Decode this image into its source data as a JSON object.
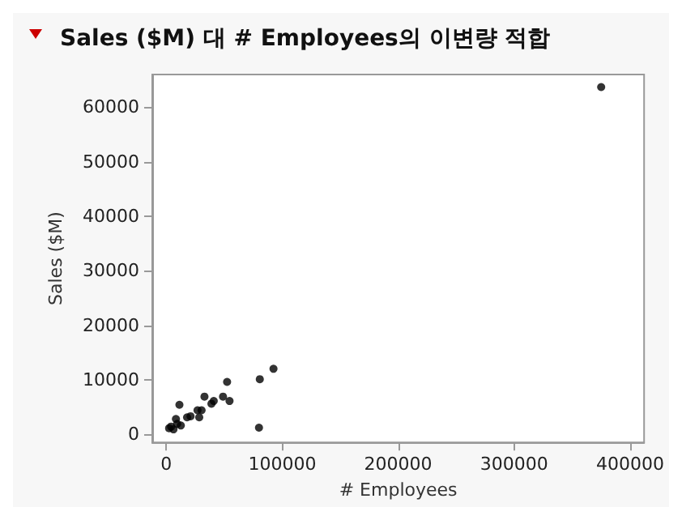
{
  "chart_data": {
    "type": "scatter",
    "title": "Sales ($M) 대 # Employees의 이변량 적합",
    "xlabel": "# Employees",
    "ylabel": "Sales ($M)",
    "x": [
      2500,
      4200,
      6300,
      8400,
      9500,
      11400,
      12600,
      18000,
      21000,
      27000,
      28500,
      30500,
      33000,
      39000,
      41000,
      49000,
      52500,
      54600,
      80000,
      80700,
      92500,
      375000
    ],
    "series": [
      {
        "color": "#000000",
        "values": [
          1100,
          1400,
          900,
          2800,
          1900,
          5400,
          1600,
          3100,
          3300,
          4400,
          3100,
          4400,
          6900,
          5600,
          6100,
          6900,
          9600,
          6100,
          1200,
          10100,
          12000,
          63700
        ]
      }
    ],
    "xlim": [
      -12000,
      412000
    ],
    "xticks": [
      0,
      100000,
      200000,
      300000,
      400000
    ],
    "ylim": [
      -1500,
      66000
    ],
    "yticks": [
      0,
      10000,
      20000,
      30000,
      40000,
      50000,
      60000
    ],
    "grid": false,
    "marker": "circle"
  }
}
